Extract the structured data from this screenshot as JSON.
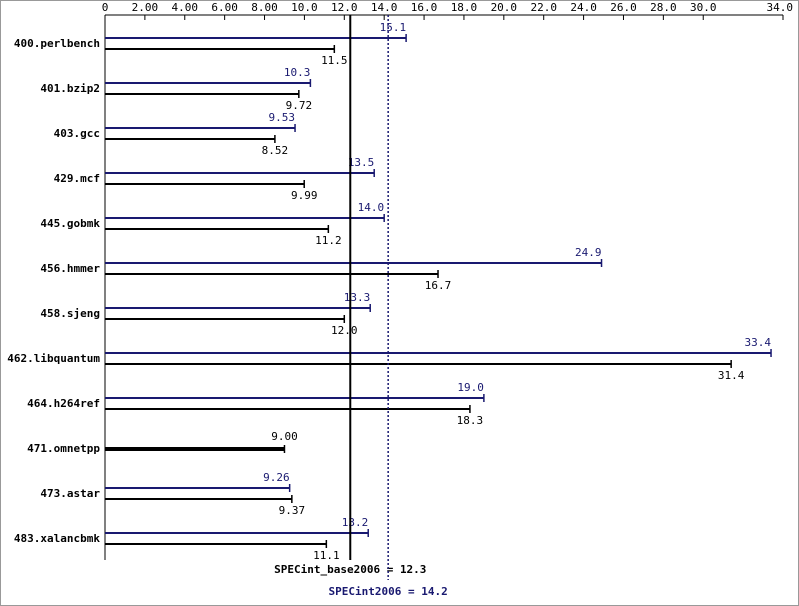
{
  "chart_data": {
    "type": "bar",
    "orientation": "horizontal",
    "categories": [
      "400.perlbench",
      "401.bzip2",
      "403.gcc",
      "429.mcf",
      "445.gobmk",
      "456.hmmer",
      "458.sjeng",
      "462.libquantum",
      "464.h264ref",
      "471.omnetpp",
      "473.astar",
      "483.xalancbmk"
    ],
    "series": [
      {
        "color": "#191970",
        "values": [
          15.1,
          10.3,
          9.53,
          13.5,
          14.0,
          24.9,
          13.3,
          33.4,
          19.0,
          null,
          9.26,
          13.2
        ],
        "value_labels": [
          "15.1",
          "10.3",
          "9.53",
          "13.5",
          "14.0",
          "24.9",
          "13.3",
          "33.4",
          "19.0",
          null,
          "9.26",
          "13.2"
        ]
      },
      {
        "color": "#000000",
        "values": [
          11.5,
          9.72,
          8.52,
          9.99,
          11.2,
          16.7,
          12.0,
          31.4,
          18.3,
          9.0,
          9.37,
          11.1
        ],
        "value_labels": [
          "11.5",
          "9.72",
          "8.52",
          "9.99",
          "11.2",
          "16.7",
          "12.0",
          "31.4",
          "18.3",
          "9.00",
          "9.37",
          "11.1"
        ]
      }
    ],
    "xlim": [
      0,
      34
    ],
    "xticks": [
      0,
      {
        "value": 2,
        "label": "2.00"
      },
      {
        "value": 4,
        "label": "4.00"
      },
      {
        "value": 6,
        "label": "6.00"
      },
      {
        "value": 8,
        "label": "8.00"
      },
      {
        "value": 10,
        "label": "10.0"
      },
      {
        "value": 12,
        "label": "12.0"
      },
      {
        "value": 14,
        "label": "14.0"
      },
      {
        "value": 16,
        "label": "16.0"
      },
      {
        "value": 18,
        "label": "18.0"
      },
      {
        "value": 20,
        "label": "20.0"
      },
      {
        "value": 22,
        "label": "22.0"
      },
      {
        "value": 24,
        "label": "24.0"
      },
      {
        "value": 26,
        "label": "26.0"
      },
      {
        "value": 28,
        "label": "28.0"
      },
      {
        "value": 30,
        "label": "30.0"
      },
      {
        "value": 34,
        "label": "34.0"
      }
    ],
    "reference_lines": [
      {
        "text": "SPECint_base2006 = 12.3",
        "value": 12.3,
        "color": "#000000",
        "style": "solid"
      },
      {
        "text": "SPECint2006 = 14.2",
        "value": 14.2,
        "color": "#191970",
        "style": "dotted"
      }
    ]
  }
}
